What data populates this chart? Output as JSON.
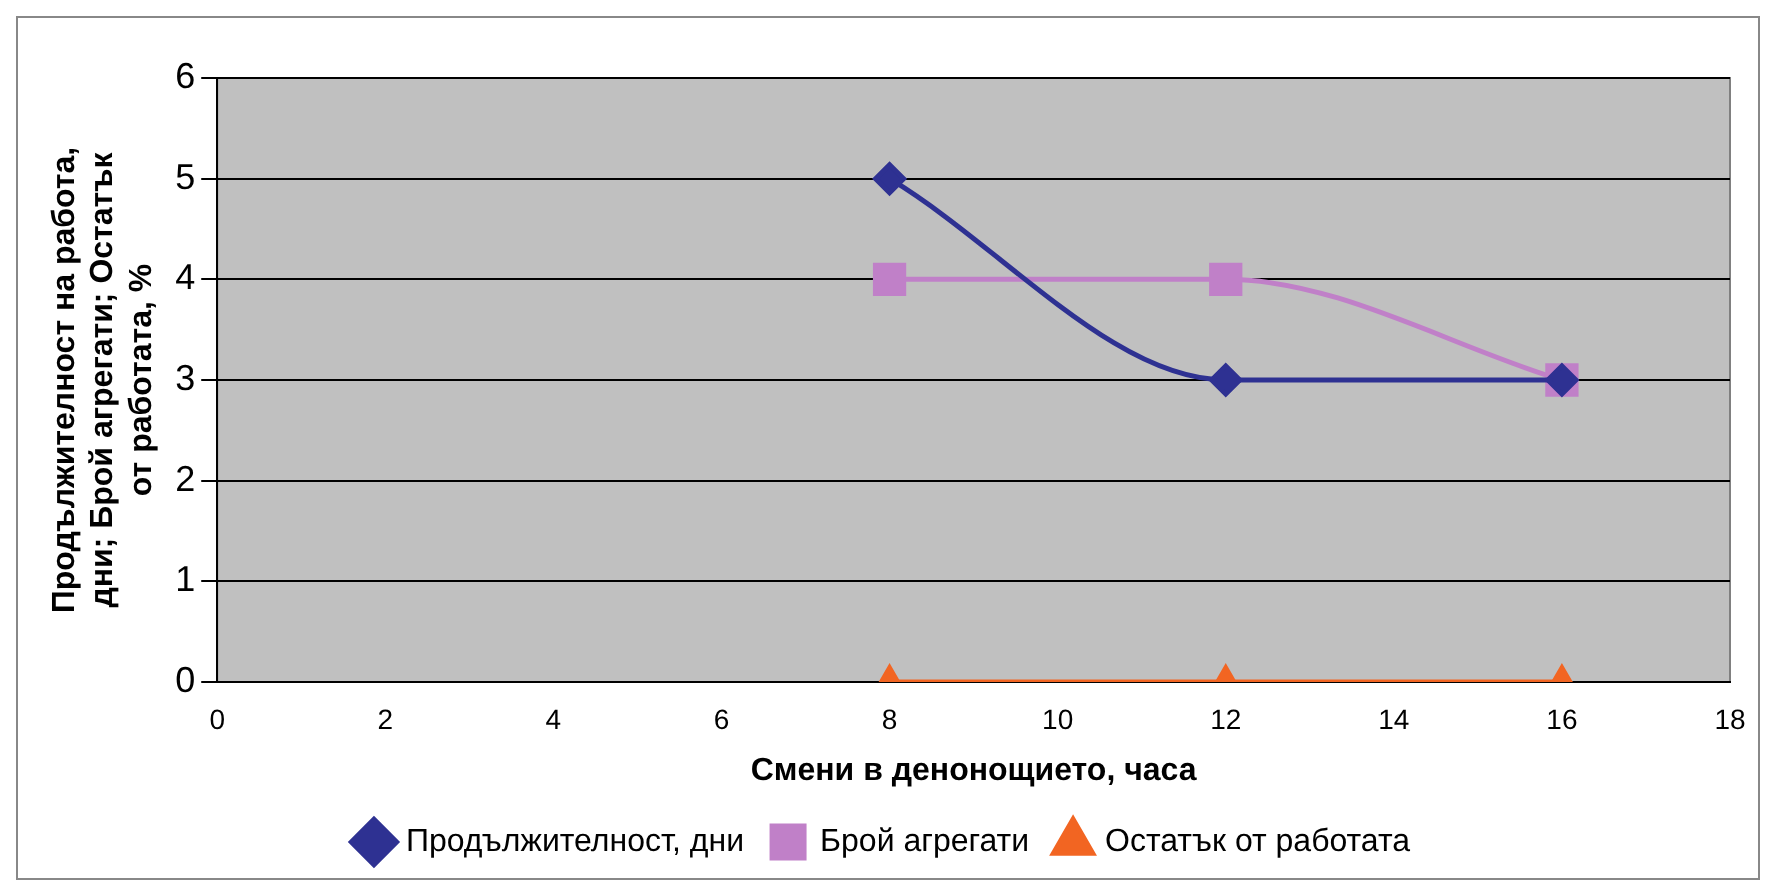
{
  "chart_data": {
    "type": "line",
    "xlabel": "Смени в денонощието, часа",
    "ylabel": "Продължителност на работа, дни; Брой агрегати; Остатък от работата, %",
    "xlim": [
      0,
      18
    ],
    "xticks": [
      0,
      2,
      4,
      6,
      8,
      10,
      12,
      14,
      16,
      18
    ],
    "ylim": [
      0,
      6
    ],
    "yticks": [
      0,
      1,
      2,
      3,
      4,
      5,
      6
    ],
    "grid": "y",
    "legend": "bottom",
    "x": [
      8,
      12,
      16
    ],
    "series": [
      {
        "name": "Продължителност, дни",
        "color": "#2e3192",
        "marker": "diamond",
        "values": [
          5,
          3,
          3
        ]
      },
      {
        "name": "Брой агрегати",
        "color": "#c080c8",
        "marker": "square",
        "values": [
          4,
          4,
          3
        ]
      },
      {
        "name": "Остатък от работата",
        "color": "#f26522",
        "marker": "triangle",
        "values": [
          0,
          0,
          0
        ]
      }
    ]
  }
}
